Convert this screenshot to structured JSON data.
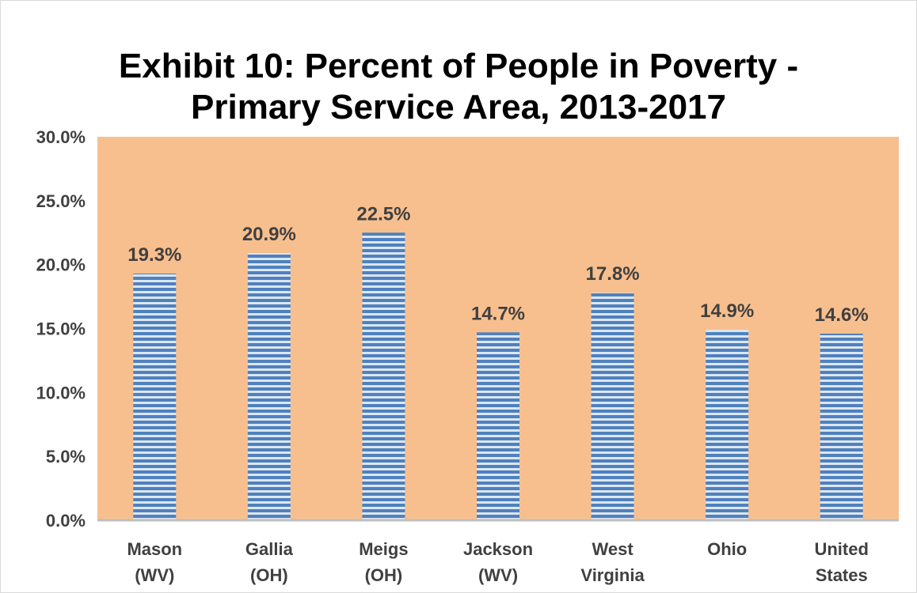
{
  "chart_data": {
    "type": "bar",
    "title_line1": "Exhibit 10:  Percent of People in Poverty -",
    "title_line2": "Primary Service Area, 2013-2017",
    "categories": [
      [
        "Mason",
        "(WV)"
      ],
      [
        "Gallia",
        "(OH)"
      ],
      [
        "Meigs",
        "(OH)"
      ],
      [
        "Jackson",
        "(WV)"
      ],
      [
        "West",
        "Virginia"
      ],
      [
        "Ohio"
      ],
      [
        "United",
        "States"
      ]
    ],
    "values": [
      19.3,
      20.9,
      22.5,
      14.7,
      17.8,
      14.9,
      14.6
    ],
    "data_labels": [
      "19.3%",
      "20.9%",
      "22.5%",
      "14.7%",
      "17.8%",
      "14.9%",
      "14.6%"
    ],
    "yticks": [
      "0.0%",
      "5.0%",
      "10.0%",
      "15.0%",
      "20.0%",
      "25.0%",
      "30.0%"
    ],
    "ylim": [
      0,
      30
    ],
    "xlabel": "",
    "ylabel": "",
    "grid": false,
    "legend": "none",
    "colors": {
      "plot_background": "#F8BF8E",
      "bar_fill": "#4F81BD",
      "bar_stripe": "#DCE6F2",
      "axis_line": "#BFBFBF",
      "text": "#404040"
    }
  }
}
